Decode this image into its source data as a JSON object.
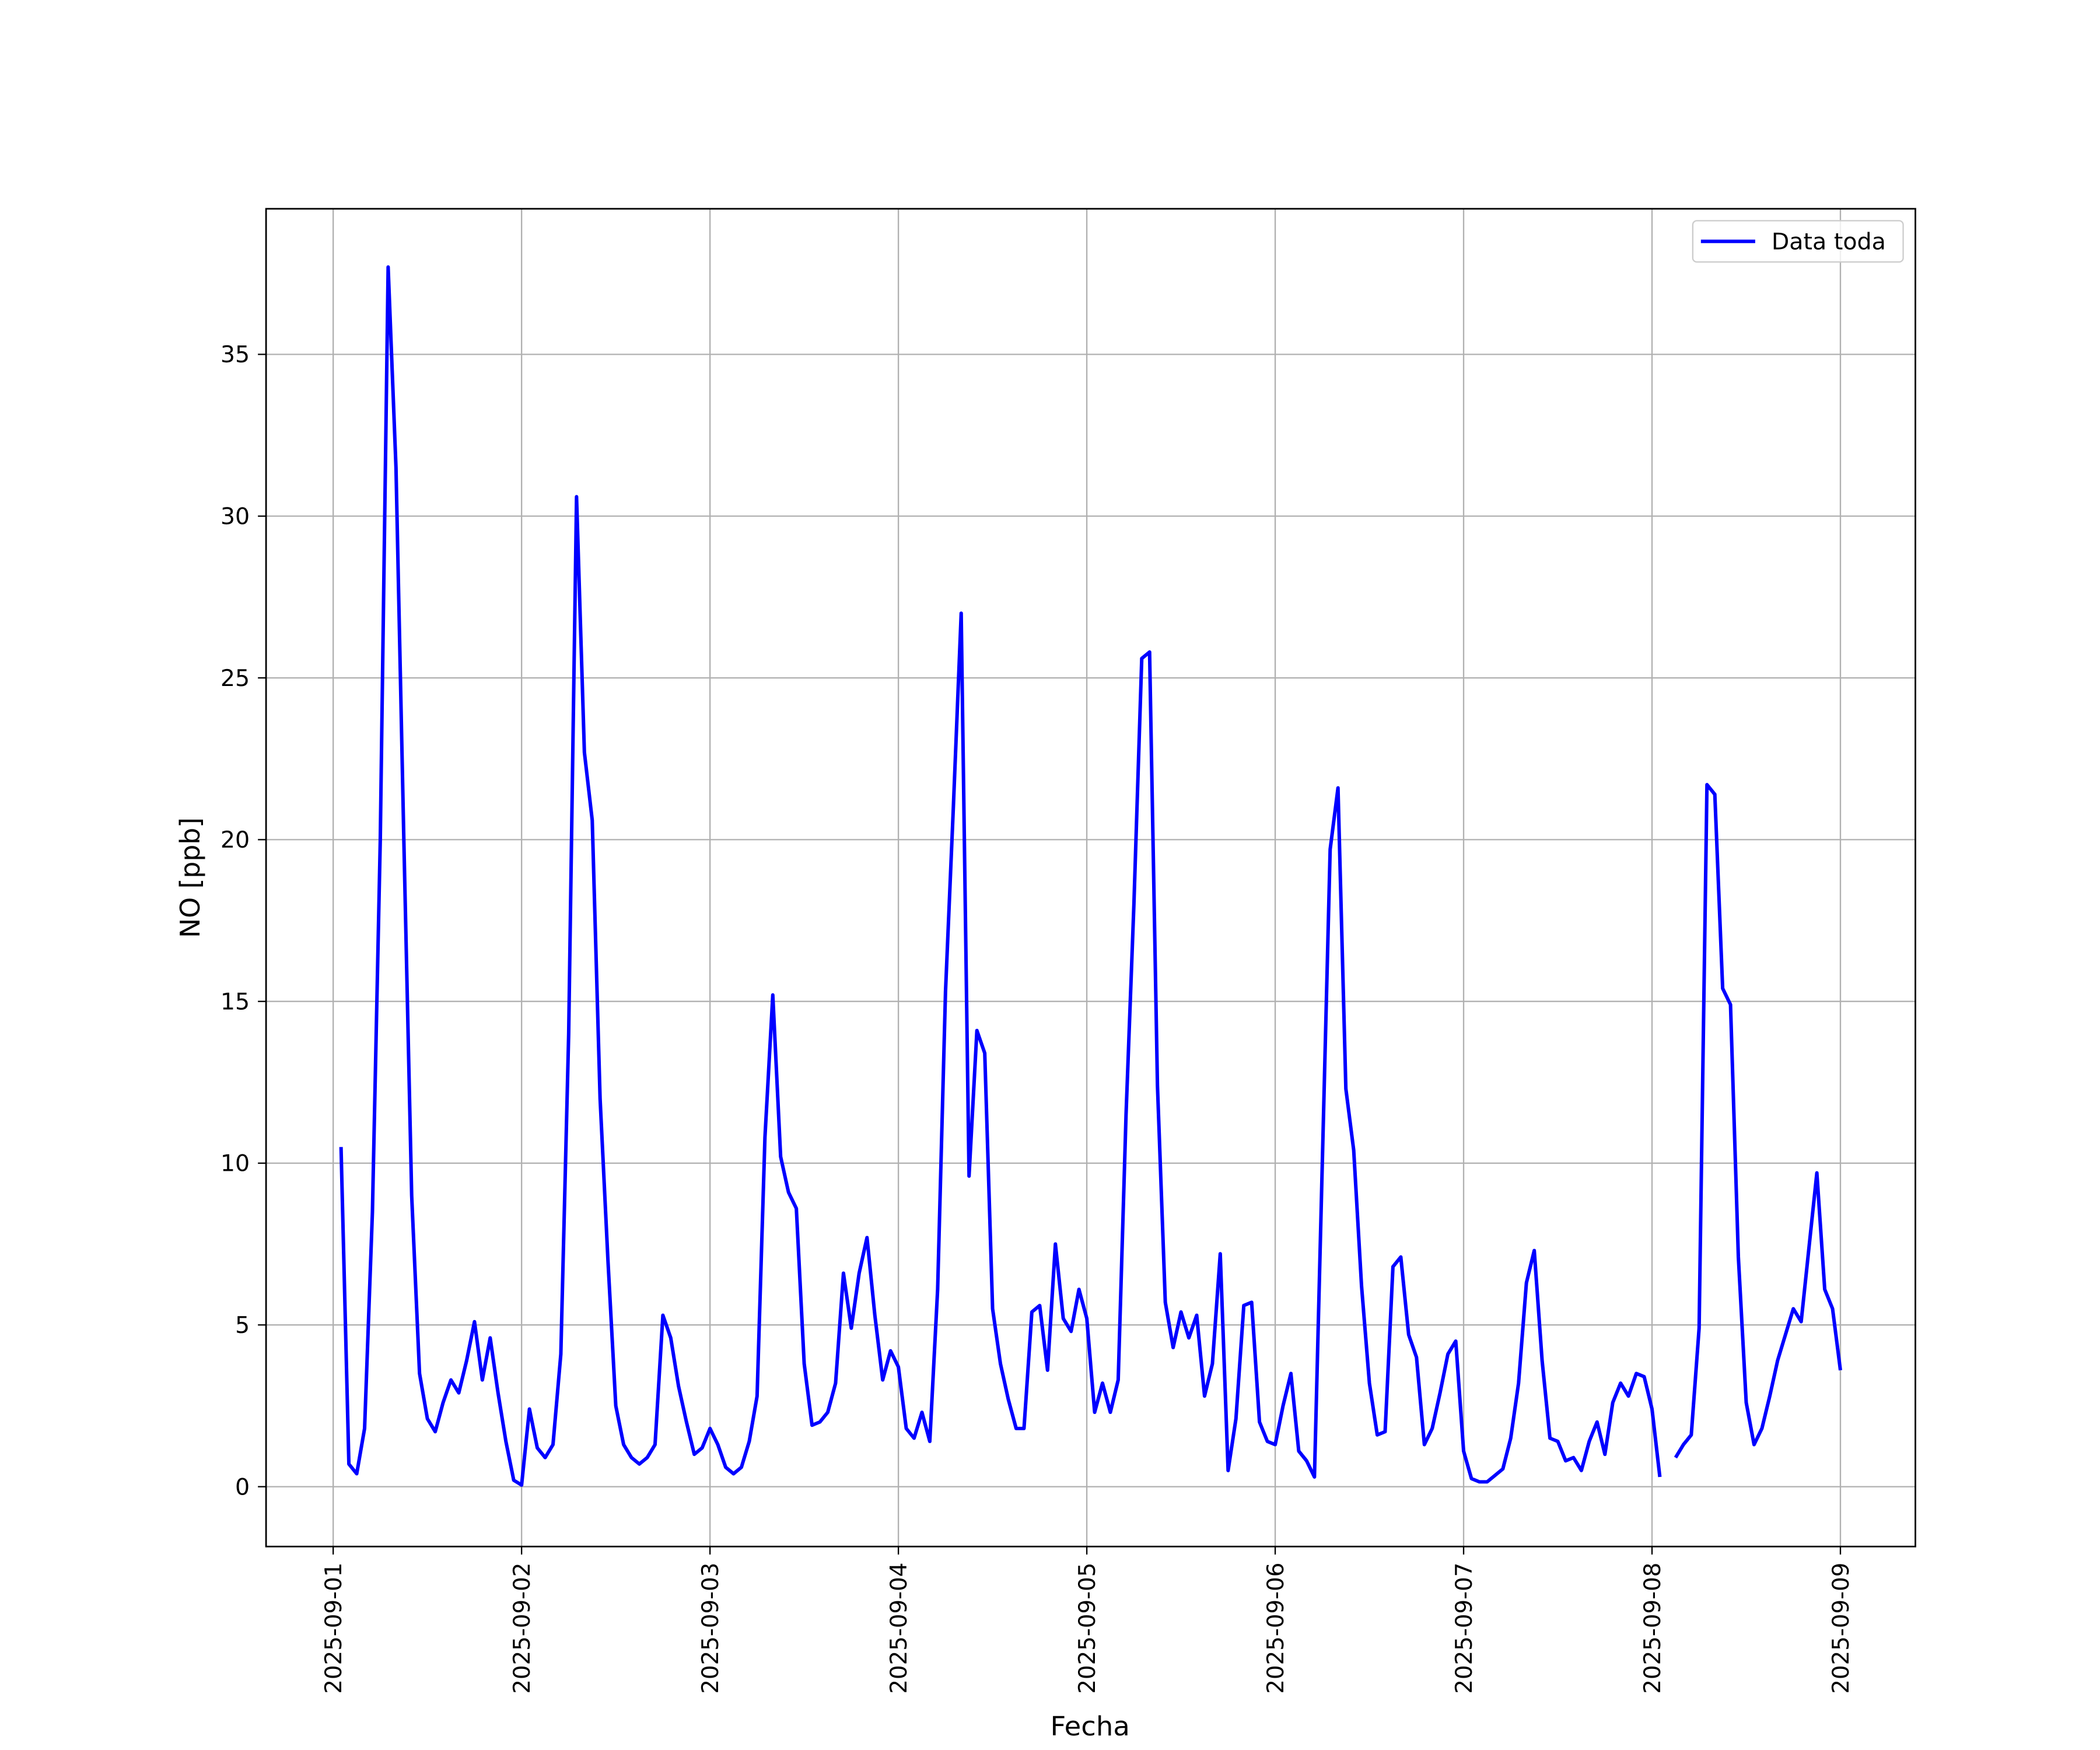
{
  "chart_data": {
    "type": "line",
    "xlabel": "Fecha",
    "ylabel": "NO [ppb]",
    "x": [
      "2025-09-01T01:00",
      "2025-09-01T02:00",
      "2025-09-01T03:00",
      "2025-09-01T04:00",
      "2025-09-01T05:00",
      "2025-09-01T06:00",
      "2025-09-01T07:00",
      "2025-09-01T08:00",
      "2025-09-01T09:00",
      "2025-09-01T10:00",
      "2025-09-01T11:00",
      "2025-09-01T12:00",
      "2025-09-01T13:00",
      "2025-09-01T14:00",
      "2025-09-01T15:00",
      "2025-09-01T16:00",
      "2025-09-01T17:00",
      "2025-09-01T18:00",
      "2025-09-01T19:00",
      "2025-09-01T20:00",
      "2025-09-01T21:00",
      "2025-09-01T22:00",
      "2025-09-01T23:00",
      "2025-09-02T00:00",
      "2025-09-02T01:00",
      "2025-09-02T02:00",
      "2025-09-02T03:00",
      "2025-09-02T04:00",
      "2025-09-02T05:00",
      "2025-09-02T06:00",
      "2025-09-02T07:00",
      "2025-09-02T08:00",
      "2025-09-02T09:00",
      "2025-09-02T10:00",
      "2025-09-02T11:00",
      "2025-09-02T12:00",
      "2025-09-02T13:00",
      "2025-09-02T14:00",
      "2025-09-02T15:00",
      "2025-09-02T16:00",
      "2025-09-02T17:00",
      "2025-09-02T18:00",
      "2025-09-02T19:00",
      "2025-09-02T20:00",
      "2025-09-02T21:00",
      "2025-09-02T22:00",
      "2025-09-02T23:00",
      "2025-09-03T00:00",
      "2025-09-03T01:00",
      "2025-09-03T02:00",
      "2025-09-03T03:00",
      "2025-09-03T04:00",
      "2025-09-03T05:00",
      "2025-09-03T06:00",
      "2025-09-03T07:00",
      "2025-09-03T08:00",
      "2025-09-03T09:00",
      "2025-09-03T10:00",
      "2025-09-03T11:00",
      "2025-09-03T12:00",
      "2025-09-03T13:00",
      "2025-09-03T14:00",
      "2025-09-03T15:00",
      "2025-09-03T16:00",
      "2025-09-03T17:00",
      "2025-09-03T18:00",
      "2025-09-03T19:00",
      "2025-09-03T20:00",
      "2025-09-03T21:00",
      "2025-09-03T22:00",
      "2025-09-03T23:00",
      "2025-09-04T00:00",
      "2025-09-04T01:00",
      "2025-09-04T02:00",
      "2025-09-04T03:00",
      "2025-09-04T04:00",
      "2025-09-04T05:00",
      "2025-09-04T06:00",
      "2025-09-04T07:00",
      "2025-09-04T08:00",
      "2025-09-04T09:00",
      "2025-09-04T10:00",
      "2025-09-04T11:00",
      "2025-09-04T12:00",
      "2025-09-04T13:00",
      "2025-09-04T14:00",
      "2025-09-04T15:00",
      "2025-09-04T16:00",
      "2025-09-04T17:00",
      "2025-09-04T18:00",
      "2025-09-04T19:00",
      "2025-09-04T20:00",
      "2025-09-04T21:00",
      "2025-09-04T22:00",
      "2025-09-04T23:00",
      "2025-09-05T00:00",
      "2025-09-05T01:00",
      "2025-09-05T02:00",
      "2025-09-05T03:00",
      "2025-09-05T04:00",
      "2025-09-05T05:00",
      "2025-09-05T06:00",
      "2025-09-05T07:00",
      "2025-09-05T08:00",
      "2025-09-05T09:00",
      "2025-09-05T10:00",
      "2025-09-05T11:00",
      "2025-09-05T12:00",
      "2025-09-05T13:00",
      "2025-09-05T14:00",
      "2025-09-05T15:00",
      "2025-09-05T16:00",
      "2025-09-05T17:00",
      "2025-09-05T18:00",
      "2025-09-05T19:00",
      "2025-09-05T20:00",
      "2025-09-05T21:00",
      "2025-09-05T22:00",
      "2025-09-05T23:00",
      "2025-09-06T00:00",
      "2025-09-06T01:00",
      "2025-09-06T02:00",
      "2025-09-06T03:00",
      "2025-09-06T04:00",
      "2025-09-06T05:00",
      "2025-09-06T06:00",
      "2025-09-06T07:00",
      "2025-09-06T08:00",
      "2025-09-06T09:00",
      "2025-09-06T10:00",
      "2025-09-06T11:00",
      "2025-09-06T12:00",
      "2025-09-06T13:00",
      "2025-09-06T14:00",
      "2025-09-06T15:00",
      "2025-09-06T16:00",
      "2025-09-06T17:00",
      "2025-09-06T18:00",
      "2025-09-06T19:00",
      "2025-09-06T20:00",
      "2025-09-06T21:00",
      "2025-09-06T22:00",
      "2025-09-06T23:00",
      "2025-09-07T00:00",
      "2025-09-07T01:00",
      "2025-09-07T02:00",
      "2025-09-07T03:00",
      "2025-09-07T04:00",
      "2025-09-07T05:00",
      "2025-09-07T06:00",
      "2025-09-07T07:00",
      "2025-09-07T08:00",
      "2025-09-07T09:00",
      "2025-09-07T10:00",
      "2025-09-07T11:00",
      "2025-09-07T12:00",
      "2025-09-07T13:00",
      "2025-09-07T14:00",
      "2025-09-07T15:00",
      "2025-09-07T16:00",
      "2025-09-07T17:00",
      "2025-09-07T18:00",
      "2025-09-07T19:00",
      "2025-09-07T20:00",
      "2025-09-07T21:00",
      "2025-09-07T22:00",
      "2025-09-07T23:00",
      "2025-09-08T00:00",
      "2025-09-08T01:00",
      "2025-09-08T02:00",
      "2025-09-08T03:00",
      "2025-09-08T04:00",
      "2025-09-08T05:00",
      "2025-09-08T06:00",
      "2025-09-08T07:00",
      "2025-09-08T08:00",
      "2025-09-08T09:00",
      "2025-09-08T10:00",
      "2025-09-08T11:00",
      "2025-09-08T12:00",
      "2025-09-08T13:00",
      "2025-09-08T14:00",
      "2025-09-08T15:00",
      "2025-09-08T16:00",
      "2025-09-08T17:00",
      "2025-09-08T18:00",
      "2025-09-08T19:00",
      "2025-09-08T20:00",
      "2025-09-08T21:00",
      "2025-09-08T22:00",
      "2025-09-08T23:00",
      "2025-09-09T00:00"
    ],
    "series": [
      {
        "name": "Data toda",
        "color": "#0000ff",
        "values": [
          10.5,
          0.7,
          0.4,
          1.8,
          8.5,
          20,
          37.7,
          31.5,
          20,
          9,
          3.5,
          2.1,
          1.7,
          2.6,
          3.3,
          2.9,
          3.9,
          5.1,
          3.3,
          4.6,
          2.9,
          1.4,
          0.2,
          0.05,
          2.4,
          1.2,
          0.9,
          1.3,
          4.1,
          14,
          30.6,
          22.7,
          20.6,
          12,
          7,
          2.5,
          1.3,
          0.9,
          0.7,
          0.9,
          1.3,
          5.3,
          4.6,
          3.1,
          2,
          1,
          1.2,
          1.8,
          1.3,
          0.6,
          0.4,
          0.6,
          1.4,
          2.8,
          10.8,
          15.2,
          10.2,
          9.1,
          8.6,
          3.8,
          1.9,
          2,
          2.3,
          3.2,
          6.6,
          4.9,
          6.6,
          7.7,
          5.3,
          3.3,
          4.2,
          3.7,
          1.8,
          1.5,
          2.3,
          1.4,
          6.1,
          15.3,
          21,
          27,
          9.6,
          14.1,
          13.4,
          5.5,
          3.8,
          2.7,
          1.8,
          1.8,
          5.4,
          5.6,
          3.6,
          7.5,
          5.2,
          4.8,
          6.1,
          5.2,
          2.3,
          3.2,
          2.3,
          3.3,
          11.5,
          18,
          25.6,
          25.8,
          12.4,
          5.7,
          4.3,
          5.4,
          4.6,
          5.3,
          2.8,
          3.8,
          7.2,
          0.5,
          2.1,
          5.6,
          5.7,
          2,
          1.4,
          1.3,
          2.5,
          3.5,
          1.1,
          0.8,
          0.3,
          10,
          19.7,
          21.6,
          12.3,
          10.4,
          6.2,
          3.2,
          1.6,
          1.7,
          6.8,
          7.1,
          4.7,
          4,
          1.3,
          1.8,
          2.9,
          4.1,
          4.5,
          1.1,
          0.25,
          0.15,
          0.15,
          0.35,
          0.55,
          1.5,
          3.2,
          6.3,
          7.3,
          3.9,
          1.5,
          1.4,
          0.8,
          0.9,
          0.5,
          1.4,
          2,
          1,
          2.6,
          3.2,
          2.8,
          3.5,
          3.4,
          2.4,
          0.3,
          null,
          0.9,
          1.3,
          1.6,
          4.9,
          21.7,
          21.4,
          15.4,
          14.9,
          7.1,
          2.6,
          1.3,
          1.8,
          2.8,
          3.9,
          4.7,
          5.5,
          5.1,
          7.4,
          9.7,
          6.1,
          5.5,
          3.6
        ]
      }
    ],
    "ylim": [
      -1.85,
      39.5
    ],
    "yticks": [
      0,
      5,
      10,
      15,
      20,
      25,
      30,
      35
    ],
    "xticks": [
      "2025-09-01",
      "2025-09-02",
      "2025-09-03",
      "2025-09-04",
      "2025-09-05",
      "2025-09-06",
      "2025-09-07",
      "2025-09-08",
      "2025-09-09"
    ],
    "grid": true,
    "legend": "upper right"
  }
}
